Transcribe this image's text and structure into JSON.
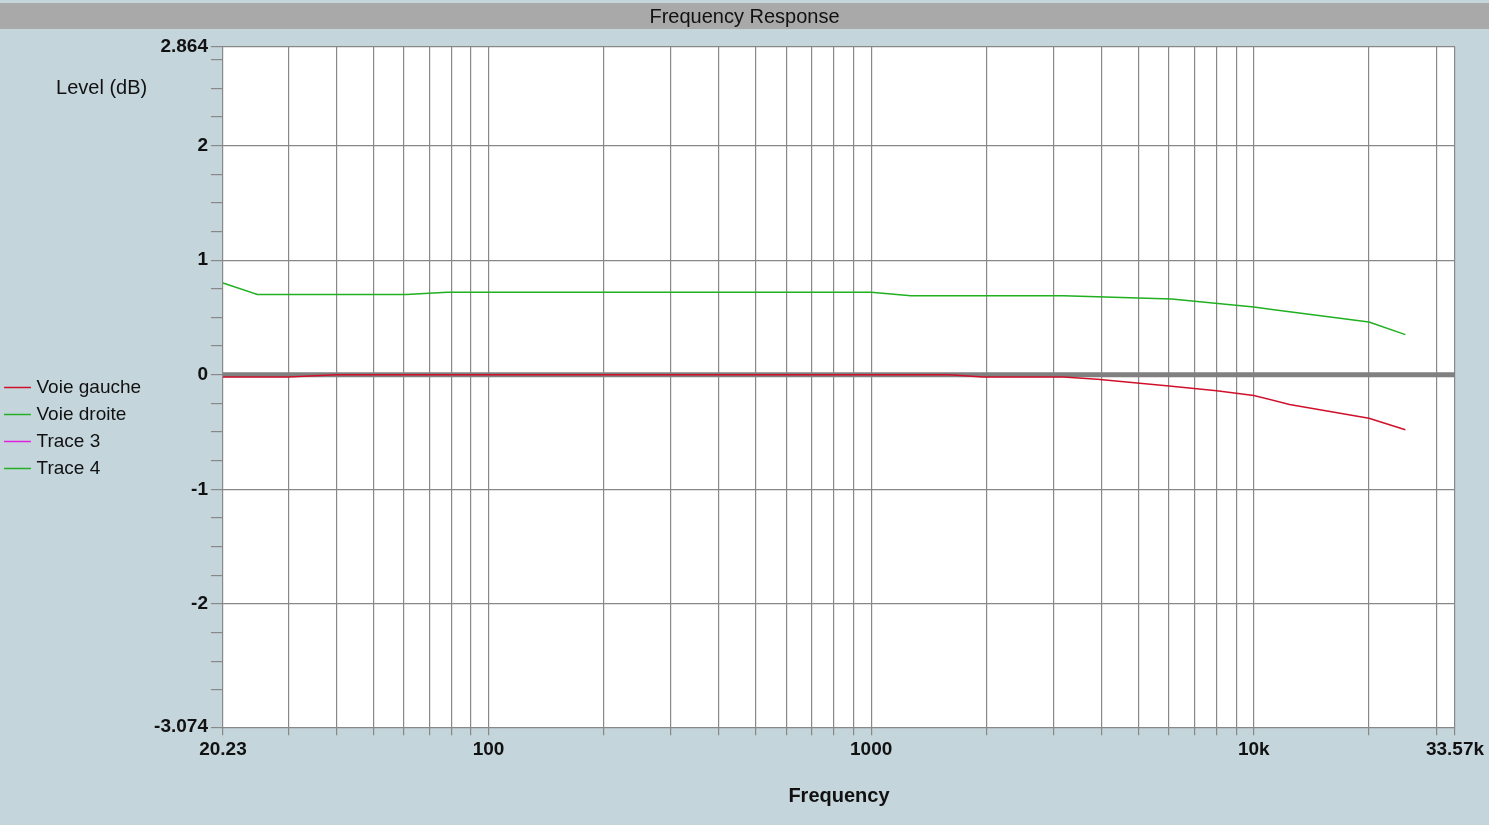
{
  "chart_data": {
    "type": "line",
    "title": "Frequency Response",
    "xlabel": "Frequency",
    "ylabel": "Level (dB)",
    "log": "x",
    "grid": true,
    "legend": "left",
    "marker": "none",
    "line_style": "solid",
    "xlim": [
      20.23,
      33570
    ],
    "ylim": [
      -3.074,
      2.864
    ],
    "xticks": [
      20.23,
      {
        "value": 30,
        "label": null
      },
      {
        "value": 40,
        "label": null
      },
      {
        "value": 50,
        "label": null
      },
      {
        "value": 60,
        "label": null
      },
      {
        "value": 70,
        "label": null
      },
      {
        "value": 80,
        "label": null
      },
      {
        "value": 90,
        "label": null
      },
      100,
      {
        "value": 200,
        "label": null
      },
      {
        "value": 300,
        "label": null
      },
      {
        "value": 400,
        "label": null
      },
      {
        "value": 500,
        "label": null
      },
      {
        "value": 600,
        "label": null
      },
      {
        "value": 700,
        "label": null
      },
      {
        "value": 800,
        "label": null
      },
      {
        "value": 900,
        "label": null
      },
      1000,
      {
        "value": 2000,
        "label": null
      },
      {
        "value": 3000,
        "label": null
      },
      {
        "value": 4000,
        "label": null
      },
      {
        "value": 5000,
        "label": null
      },
      {
        "value": 6000,
        "label": null
      },
      {
        "value": 7000,
        "label": null
      },
      {
        "value": 8000,
        "label": null
      },
      {
        "value": 9000,
        "label": null
      },
      {
        "value": 10000,
        "label": "10k"
      },
      {
        "value": 20000,
        "label": null
      },
      {
        "value": 30000,
        "label": null
      },
      {
        "value": 33570,
        "label": "33.57k"
      }
    ],
    "yticks": [
      -3.074,
      {
        "value": -2.75,
        "label": null
      },
      {
        "value": -2.5,
        "label": null
      },
      {
        "value": -2.25,
        "label": null
      },
      -2,
      {
        "value": -1.75,
        "label": null
      },
      {
        "value": -1.5,
        "label": null
      },
      {
        "value": -1.25,
        "label": null
      },
      -1,
      {
        "value": -0.75,
        "label": null
      },
      {
        "value": -0.5,
        "label": null
      },
      {
        "value": -0.25,
        "label": null
      },
      0,
      {
        "value": 0.25,
        "label": null
      },
      {
        "value": 0.5,
        "label": null
      },
      {
        "value": 0.75,
        "label": null
      },
      1,
      {
        "value": 1.25,
        "label": null
      },
      {
        "value": 1.5,
        "label": null
      },
      {
        "value": 1.75,
        "label": null
      },
      2,
      {
        "value": 2.25,
        "label": null
      },
      {
        "value": 2.5,
        "label": null
      },
      {
        "value": 2.75,
        "label": null
      },
      2.864
    ],
    "ref_lines": [
      {
        "axis": "y",
        "value": 0,
        "color": "#808080"
      }
    ],
    "series": [
      {
        "name": "Voie gauche",
        "color": "#d0102a",
        "x": [
          20.23,
          30,
          40,
          1600,
          1960,
          3180,
          3900,
          6100,
          8000,
          10000,
          12400,
          20000,
          24900
        ],
        "values": [
          -0.02,
          -0.02,
          0,
          0,
          -0.02,
          -0.02,
          -0.04,
          -0.1,
          -0.14,
          -0.18,
          -0.26,
          -0.38,
          -0.48
        ]
      },
      {
        "name": "Voie droite",
        "color": "#20b020",
        "x": [
          20.23,
          24.9,
          61,
          78,
          1000,
          1270,
          3180,
          6100,
          10000,
          12400,
          20000,
          24900
        ],
        "values": [
          0.8,
          0.7,
          0.7,
          0.72,
          0.72,
          0.69,
          0.69,
          0.66,
          0.59,
          0.55,
          0.46,
          0.35
        ]
      },
      {
        "name": "Trace 3",
        "color": "#e020e0"
      },
      {
        "name": "Trace 4",
        "color": "#20b020"
      }
    ]
  }
}
